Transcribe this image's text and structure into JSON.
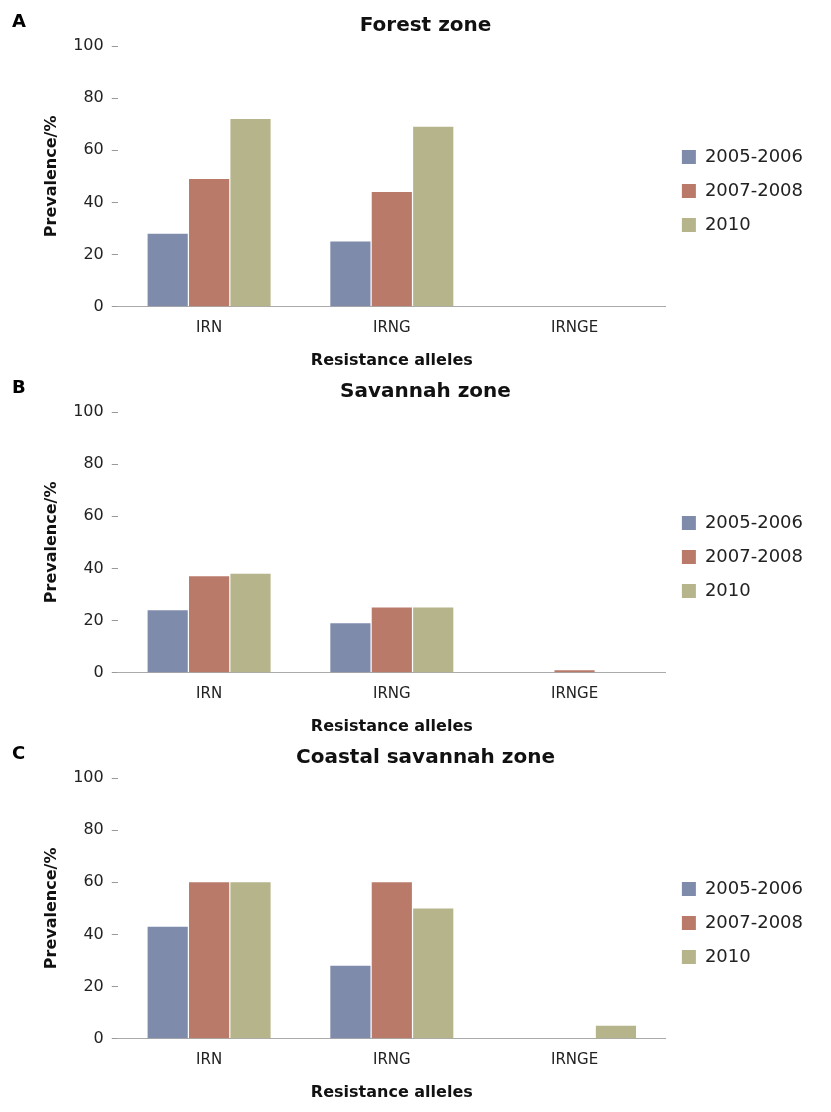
{
  "chart_data": [
    {
      "type": "bar",
      "title": "Forest zone",
      "annotations": [
        "A"
      ],
      "xlabel": "Resistance alleles",
      "ylabel": "Prevalence/%",
      "categories": [
        "IRN",
        "IRNG",
        "IRNGE"
      ],
      "series": [
        {
          "name": "2005-2006",
          "color": "#7f8bab",
          "values": [
            28,
            25,
            0
          ]
        },
        {
          "name": "2007-2008",
          "color": "#b97a6a",
          "values": [
            49,
            44,
            0
          ]
        },
        {
          "name": "2010",
          "color": "#b5b48a",
          "values": [
            72,
            69,
            0
          ]
        }
      ],
      "ylim": [
        0,
        100
      ],
      "yticks": [
        0,
        20,
        40,
        60,
        80,
        100
      ],
      "grid": false,
      "legend": "right"
    },
    {
      "type": "bar",
      "title": "Savannah zone",
      "annotations": [
        "B"
      ],
      "xlabel": "Resistance alleles",
      "ylabel": "Prevalence/%",
      "categories": [
        "IRN",
        "IRNG",
        "IRNGE"
      ],
      "series": [
        {
          "name": "2005-2006",
          "color": "#7f8bab",
          "values": [
            24,
            19,
            0
          ]
        },
        {
          "name": "2007-2008",
          "color": "#b97a6a",
          "values": [
            37,
            25,
            1
          ]
        },
        {
          "name": "2010",
          "color": "#b5b48a",
          "values": [
            38,
            25,
            0
          ]
        }
      ],
      "ylim": [
        0,
        100
      ],
      "yticks": [
        0,
        20,
        40,
        60,
        80,
        100
      ],
      "grid": false,
      "legend": "right"
    },
    {
      "type": "bar",
      "title": "Coastal savannah zone",
      "annotations": [
        "C"
      ],
      "xlabel": "Resistance alleles",
      "ylabel": "Prevalence/%",
      "categories": [
        "IRN",
        "IRNG",
        "IRNGE"
      ],
      "series": [
        {
          "name": "2005-2006",
          "color": "#7f8bab",
          "values": [
            43,
            28,
            0
          ]
        },
        {
          "name": "2007-2008",
          "color": "#b97a6a",
          "values": [
            60,
            60,
            0
          ]
        },
        {
          "name": "2010",
          "color": "#b5b48a",
          "values": [
            60,
            50,
            5
          ]
        }
      ],
      "ylim": [
        0,
        100
      ],
      "yticks": [
        0,
        20,
        40,
        60,
        80,
        100
      ],
      "grid": false,
      "legend": "right"
    }
  ]
}
